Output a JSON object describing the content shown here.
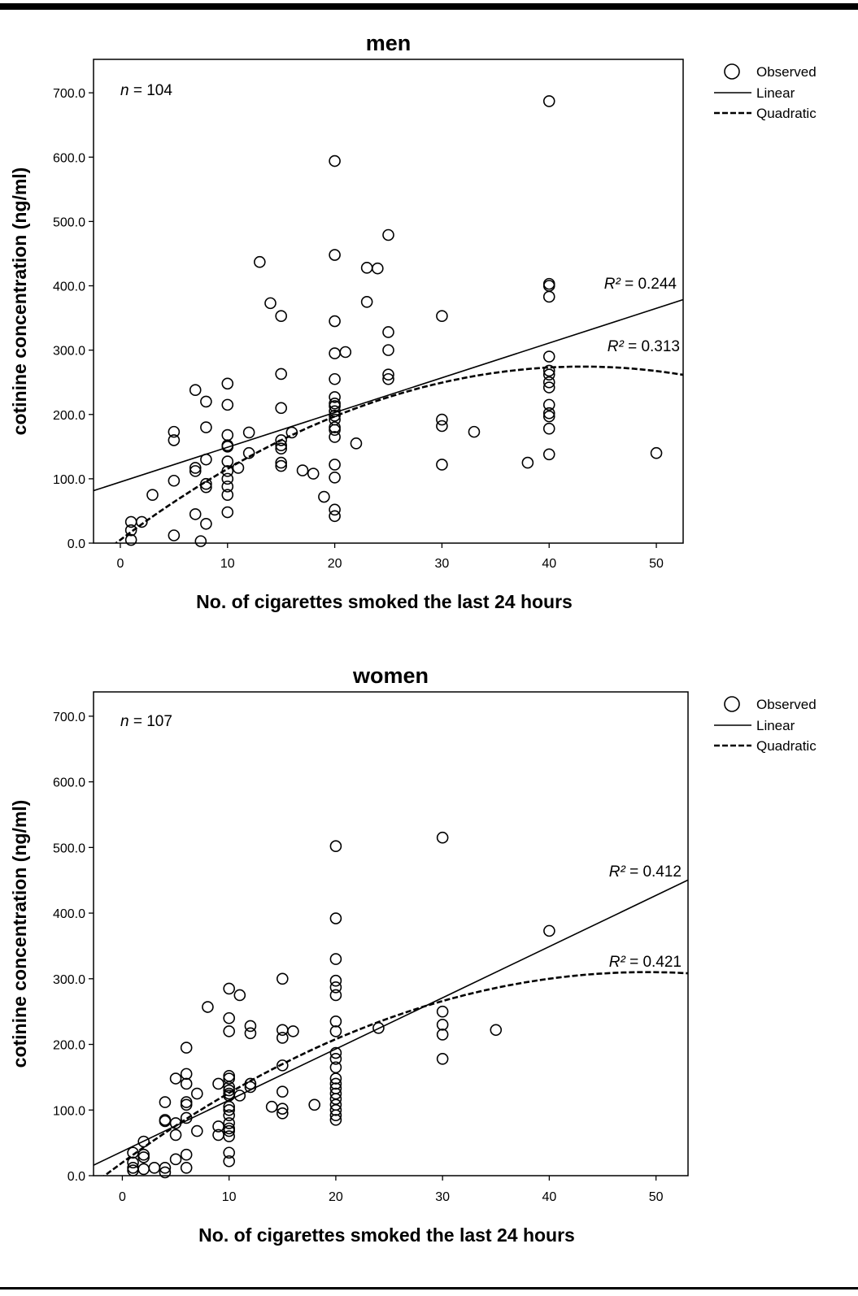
{
  "chart_data": [
    {
      "type": "scatter",
      "title": "men",
      "xlabel": "No. of cigarettes smoked the last 24 hours",
      "ylabel": "cotinine concentration (ng/ml)",
      "xlim": [
        -2.5,
        52.5
      ],
      "ylim": [
        0,
        752
      ],
      "xticks": [
        "0",
        "10",
        "20",
        "30",
        "40",
        "50"
      ],
      "yticks": [
        "0.0",
        "100.0",
        "200.0",
        "300.0",
        "400.0",
        "500.0",
        "600.0",
        "700.0"
      ],
      "sample_label": "n = 104",
      "legend": {
        "placement": "outside-right",
        "observed": "Observed",
        "linear": "Linear",
        "quadratic": "Quadratic"
      },
      "series": [
        {
          "name": "Observed",
          "points": [
            [
              1,
              33
            ],
            [
              1,
              20
            ],
            [
              1,
              5
            ],
            [
              2,
              33
            ],
            [
              3,
              75
            ],
            [
              5,
              173
            ],
            [
              5,
              160
            ],
            [
              5,
              97
            ],
            [
              5,
              12
            ],
            [
              7,
              238
            ],
            [
              7,
              117
            ],
            [
              7,
              112
            ],
            [
              7,
              45
            ],
            [
              7.5,
              3
            ],
            [
              8,
              220
            ],
            [
              8,
              180
            ],
            [
              8,
              130
            ],
            [
              8,
              92
            ],
            [
              8,
              87
            ],
            [
              8,
              30
            ],
            [
              10,
              248
            ],
            [
              10,
              215
            ],
            [
              10,
              168
            ],
            [
              10,
              152
            ],
            [
              10,
              150
            ],
            [
              10,
              127
            ],
            [
              10,
              112
            ],
            [
              10,
              100
            ],
            [
              10,
              88
            ],
            [
              10,
              75
            ],
            [
              10,
              48
            ],
            [
              11,
              117
            ],
            [
              12,
              172
            ],
            [
              12,
              140
            ],
            [
              13,
              437
            ],
            [
              14,
              373
            ],
            [
              15,
              353
            ],
            [
              15,
              263
            ],
            [
              15,
              210
            ],
            [
              15,
              160
            ],
            [
              15,
              152
            ],
            [
              15,
              147
            ],
            [
              15,
              125
            ],
            [
              15,
              120
            ],
            [
              16,
              172
            ],
            [
              17,
              113
            ],
            [
              18,
              108
            ],
            [
              19,
              72
            ],
            [
              20,
              594
            ],
            [
              20,
              448
            ],
            [
              20,
              345
            ],
            [
              20,
              295
            ],
            [
              20,
              255
            ],
            [
              20,
              227
            ],
            [
              20,
              217
            ],
            [
              20,
              213
            ],
            [
              20,
              205
            ],
            [
              20,
              198
            ],
            [
              20,
              192
            ],
            [
              20,
              180
            ],
            [
              20,
              176
            ],
            [
              20,
              165
            ],
            [
              20,
              122
            ],
            [
              20,
              102
            ],
            [
              20,
              52
            ],
            [
              20,
              42
            ],
            [
              21,
              297
            ],
            [
              22,
              155
            ],
            [
              23,
              428
            ],
            [
              23,
              375
            ],
            [
              24,
              427
            ],
            [
              25,
              479
            ],
            [
              25,
              328
            ],
            [
              25,
              300
            ],
            [
              25,
              262
            ],
            [
              25,
              255
            ],
            [
              30,
              353
            ],
            [
              30,
              192
            ],
            [
              30,
              182
            ],
            [
              30,
              122
            ],
            [
              33,
              173
            ],
            [
              38,
              125
            ],
            [
              40,
              687
            ],
            [
              40,
              403
            ],
            [
              40,
              400
            ],
            [
              40,
              383
            ],
            [
              40,
              290
            ],
            [
              40,
              268
            ],
            [
              40,
              262
            ],
            [
              40,
              250
            ],
            [
              40,
              242
            ],
            [
              40,
              215
            ],
            [
              40,
              202
            ],
            [
              40,
              197
            ],
            [
              40,
              178
            ],
            [
              40,
              138
            ],
            [
              50,
              140
            ]
          ]
        },
        {
          "name": "Linear",
          "r2_label": "R² = 0.244",
          "intercept": 95,
          "slope": 5.4
        },
        {
          "name": "Quadratic",
          "r2_label": "R² = 0.313",
          "a": 5,
          "b": 12.5,
          "c": -0.145
        }
      ]
    },
    {
      "type": "scatter",
      "title": "women",
      "xlabel": "No. of cigarettes smoked the last 24 hours",
      "ylabel": "cotinine concentration (ng/ml)",
      "xlim": [
        -2.7,
        53
      ],
      "ylim": [
        0,
        737
      ],
      "xticks": [
        "0",
        "10",
        "20",
        "30",
        "40",
        "50"
      ],
      "yticks": [
        "0.0",
        "100.0",
        "200.0",
        "300.0",
        "400.0",
        "500.0",
        "600.0",
        "700.0"
      ],
      "sample_label": "n = 107",
      "legend": {
        "placement": "outside-right",
        "observed": "Observed",
        "linear": "Linear",
        "quadratic": "Quadratic"
      },
      "series": [
        {
          "name": "Observed",
          "points": [
            [
              1,
              35
            ],
            [
              1,
              20
            ],
            [
              1,
              12
            ],
            [
              1,
              8
            ],
            [
              2,
              52
            ],
            [
              2,
              32
            ],
            [
              2,
              28
            ],
            [
              2,
              10
            ],
            [
              3,
              12
            ],
            [
              4,
              112
            ],
            [
              4,
              83
            ],
            [
              4,
              85
            ],
            [
              4,
              12
            ],
            [
              4,
              5
            ],
            [
              5,
              148
            ],
            [
              5,
              80
            ],
            [
              5,
              62
            ],
            [
              5,
              25
            ],
            [
              6,
              195
            ],
            [
              6,
              155
            ],
            [
              6,
              140
            ],
            [
              6,
              112
            ],
            [
              6,
              108
            ],
            [
              6,
              88
            ],
            [
              6,
              32
            ],
            [
              6,
              12
            ],
            [
              7,
              125
            ],
            [
              7,
              68
            ],
            [
              8,
              257
            ],
            [
              9,
              140
            ],
            [
              9,
              75
            ],
            [
              9,
              62
            ],
            [
              10,
              285
            ],
            [
              10,
              240
            ],
            [
              10,
              220
            ],
            [
              10,
              152
            ],
            [
              10,
              148
            ],
            [
              10,
              135
            ],
            [
              10,
              130
            ],
            [
              10,
              125
            ],
            [
              10,
              122
            ],
            [
              10,
              105
            ],
            [
              10,
              100
            ],
            [
              10,
              92
            ],
            [
              10,
              80
            ],
            [
              10,
              72
            ],
            [
              10,
              68
            ],
            [
              10,
              60
            ],
            [
              10,
              35
            ],
            [
              10,
              22
            ],
            [
              11,
              275
            ],
            [
              11,
              122
            ],
            [
              12,
              228
            ],
            [
              12,
              217
            ],
            [
              12,
              140
            ],
            [
              12,
              135
            ],
            [
              14,
              105
            ],
            [
              15,
              300
            ],
            [
              15,
              222
            ],
            [
              15,
              210
            ],
            [
              15,
              168
            ],
            [
              15,
              128
            ],
            [
              15,
              102
            ],
            [
              15,
              95
            ],
            [
              16,
              220
            ],
            [
              18,
              108
            ],
            [
              20,
              502
            ],
            [
              20,
              392
            ],
            [
              20,
              330
            ],
            [
              20,
              297
            ],
            [
              20,
              287
            ],
            [
              20,
              275
            ],
            [
              20,
              235
            ],
            [
              20,
              220
            ],
            [
              20,
              187
            ],
            [
              20,
              178
            ],
            [
              20,
              165
            ],
            [
              20,
              148
            ],
            [
              20,
              140
            ],
            [
              20,
              133
            ],
            [
              20,
              125
            ],
            [
              20,
              117
            ],
            [
              20,
              108
            ],
            [
              20,
              100
            ],
            [
              20,
              92
            ],
            [
              20,
              85
            ],
            [
              24,
              225
            ],
            [
              30,
              515
            ],
            [
              30,
              250
            ],
            [
              30,
              230
            ],
            [
              30,
              215
            ],
            [
              30,
              178
            ],
            [
              35,
              222
            ],
            [
              40,
              373
            ]
          ]
        },
        {
          "name": "Linear",
          "r2_label": "R² = 0.412",
          "intercept": 37,
          "slope": 7.8
        },
        {
          "name": "Quadratic",
          "r2_label": "R² = 0.421",
          "a": 20,
          "b": 11.8,
          "c": -0.12
        }
      ]
    }
  ]
}
